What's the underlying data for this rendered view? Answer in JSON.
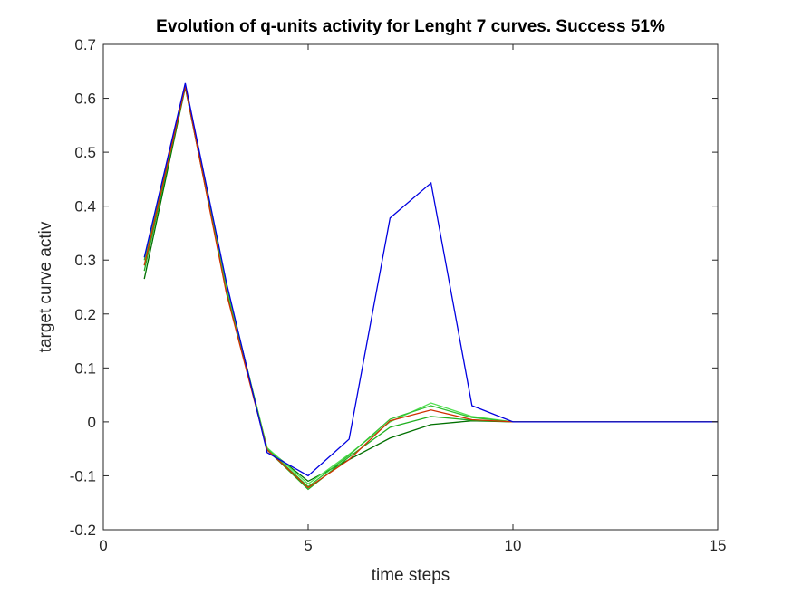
{
  "chart_data": {
    "type": "line",
    "title": "Evolution of q-units activity for Lenght 7 curves. Success 51%",
    "xlabel": "time steps",
    "ylabel": "target curve activ",
    "xlim": [
      0,
      15
    ],
    "ylim": [
      -0.2,
      0.7
    ],
    "xticks": [
      0,
      5,
      10,
      15
    ],
    "yticks": [
      -0.2,
      -0.1,
      0,
      0.1,
      0.2,
      0.3,
      0.4,
      0.5,
      0.6,
      0.7
    ],
    "grid": false,
    "legend": "none",
    "series": [
      {
        "color": "#007000",
        "x": [
          1,
          2,
          3,
          4,
          5,
          6,
          7,
          8,
          9,
          10,
          11,
          12,
          13,
          14,
          15
        ],
        "y": [
          0.265,
          0.62,
          0.245,
          -0.05,
          -0.11,
          -0.07,
          -0.03,
          -0.005,
          0.002,
          0,
          0,
          0,
          0,
          0,
          0
        ]
      },
      {
        "color": "#20b020",
        "x": [
          1,
          2,
          3,
          4,
          5,
          6,
          7,
          8,
          9,
          10,
          11,
          12,
          13,
          14,
          15
        ],
        "y": [
          0.28,
          0.622,
          0.25,
          -0.052,
          -0.125,
          -0.065,
          -0.01,
          0.01,
          0.003,
          0,
          0,
          0,
          0,
          0,
          0
        ]
      },
      {
        "color": "#50e050",
        "x": [
          1,
          2,
          3,
          4,
          5,
          6,
          7,
          8,
          9,
          10,
          11,
          12,
          13,
          14,
          15
        ],
        "y": [
          0.29,
          0.625,
          0.252,
          -0.048,
          -0.115,
          -0.06,
          0.0,
          0.035,
          0.01,
          0,
          0,
          0,
          0,
          0,
          0
        ]
      },
      {
        "color": "#30c030",
        "x": [
          1,
          2,
          3,
          4,
          5,
          6,
          7,
          8,
          9,
          10,
          11,
          12,
          13,
          14,
          15
        ],
        "y": [
          0.3,
          0.625,
          0.255,
          -0.05,
          -0.12,
          -0.062,
          0.005,
          0.03,
          0.008,
          0,
          0,
          0,
          0,
          0,
          0
        ]
      },
      {
        "color": "#d03000",
        "x": [
          1,
          2,
          3,
          4,
          5,
          6,
          7,
          8,
          9,
          10,
          11,
          12,
          13,
          14,
          15
        ],
        "y": [
          0.29,
          0.622,
          0.24,
          -0.052,
          -0.122,
          -0.07,
          0.002,
          0.022,
          0.004,
          0,
          0,
          0,
          0,
          0,
          0
        ]
      },
      {
        "color": "#0000e0",
        "x": [
          1,
          2,
          3,
          4,
          5,
          6,
          7,
          8,
          9,
          10,
          11,
          12,
          13,
          14,
          15
        ],
        "y": [
          0.305,
          0.628,
          0.26,
          -0.057,
          -0.1,
          -0.032,
          0.378,
          0.443,
          0.03,
          0,
          0,
          0,
          0,
          0,
          0
        ]
      }
    ]
  }
}
